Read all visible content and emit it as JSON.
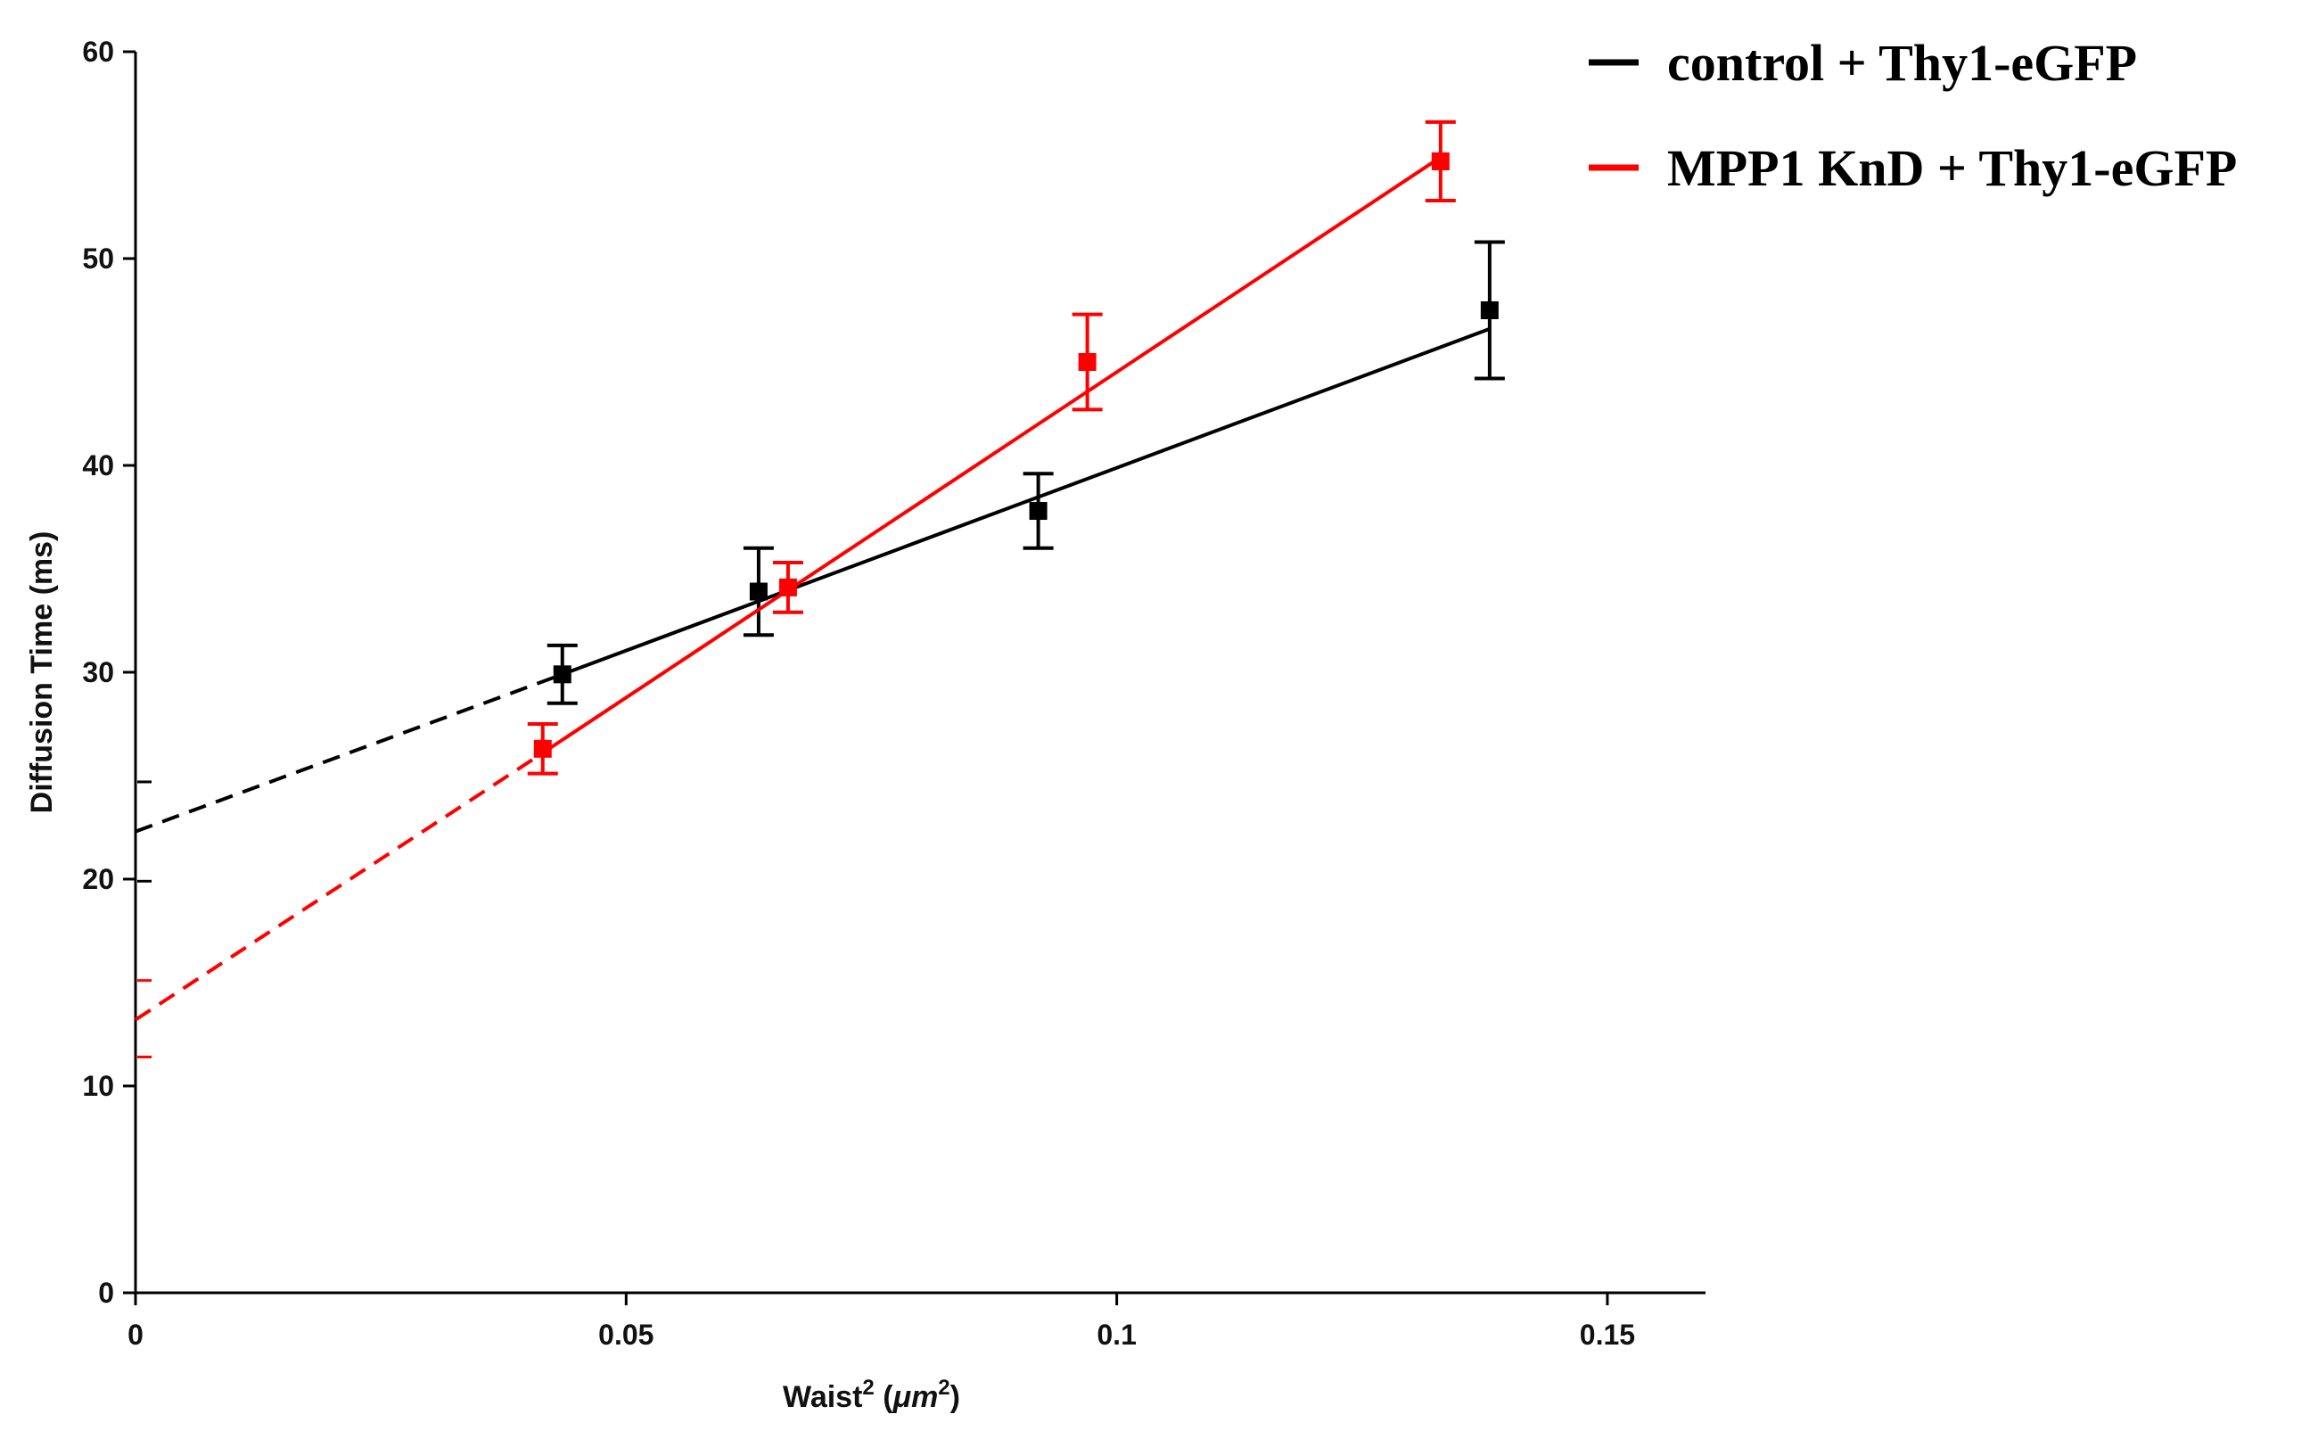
{
  "chart_data": {
    "type": "scatter",
    "title": "",
    "xlabel": "Waist",
    "xlabel_sup": "2",
    "xlabel_unit_open": " (",
    "xlabel_unit": "μm",
    "xlabel_unit_sup": "2",
    "xlabel_unit_close": ")",
    "ylabel": "Diffusion Time (ms)",
    "xlim": [
      0,
      0.16
    ],
    "ylim": [
      0,
      60
    ],
    "x_ticks": [
      0,
      0.05,
      0.1,
      0.15
    ],
    "x_tick_labels": [
      "0",
      "0.05",
      "0.1",
      "0.15"
    ],
    "y_ticks": [
      0,
      10,
      20,
      30,
      40,
      50,
      60
    ],
    "y_tick_labels": [
      "0",
      "10",
      "20",
      "30",
      "40",
      "50",
      "60"
    ],
    "legend_position": "top-right",
    "series": [
      {
        "name": "control + Thy1-eGFP",
        "color": "#000000",
        "x": [
          0.0435,
          0.0635,
          0.092,
          0.138
        ],
        "y": [
          29.9,
          33.9,
          37.8,
          47.5
        ],
        "yerr": [
          1.4,
          2.1,
          1.8,
          3.3
        ],
        "fit": {
          "x_start": 0.0435,
          "x_end": 0.138,
          "y_start": 29.9,
          "y_end": 46.6
        },
        "extrapolation": {
          "x_start": 0,
          "x_end": 0.0435,
          "y_start": 22.3,
          "y_end": 29.9
        },
        "intercept_error_marks": [
          24.7,
          19.9
        ]
      },
      {
        "name": "MPP1 KnD + Thy1-eGFP",
        "color": "#ff0000",
        "x": [
          0.0415,
          0.0665,
          0.097,
          0.133
        ],
        "y": [
          26.3,
          34.1,
          45.0,
          54.7
        ],
        "yerr": [
          1.2,
          1.2,
          2.3,
          1.9
        ],
        "fit": {
          "x_start": 0.0415,
          "x_end": 0.133,
          "y_start": 26.1,
          "y_end": 54.9
        },
        "extrapolation": {
          "x_start": 0,
          "x_end": 0.0415,
          "y_start": 13.2,
          "y_end": 26.1
        },
        "intercept_error_marks": [
          15.1,
          11.4
        ]
      }
    ]
  }
}
